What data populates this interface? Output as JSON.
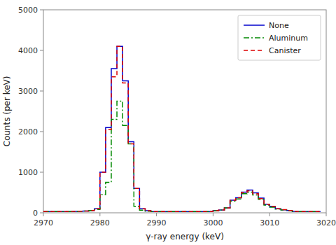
{
  "chart_data": {
    "type": "step",
    "title": "",
    "xlabel": "γ-ray energy (keV)",
    "ylabel": "Counts (per keV)",
    "xlim": [
      2970,
      3020
    ],
    "ylim": [
      0,
      5000
    ],
    "xticks": [
      2970,
      2980,
      2990,
      3000,
      3010,
      3020
    ],
    "yticks": [
      0,
      1000,
      2000,
      3000,
      4000,
      5000
    ],
    "grid": false,
    "legend": "upper right",
    "x": [
      2970,
      2971,
      2972,
      2973,
      2974,
      2975,
      2976,
      2977,
      2978,
      2979,
      2980,
      2981,
      2982,
      2983,
      2984,
      2985,
      2986,
      2987,
      2988,
      2989,
      2990,
      2991,
      2992,
      2993,
      2994,
      2995,
      2996,
      2997,
      2998,
      2999,
      3000,
      3001,
      3002,
      3003,
      3004,
      3005,
      3006,
      3007,
      3008,
      3009,
      3010,
      3011,
      3012,
      3013,
      3014,
      3015,
      3016,
      3017,
      3018,
      3019
    ],
    "series": [
      {
        "name": "None",
        "color": "#0000cc",
        "line_style": "solid",
        "values": [
          30,
          30,
          30,
          30,
          30,
          35,
          40,
          45,
          55,
          100,
          1000,
          2100,
          3550,
          4100,
          3250,
          1750,
          600,
          100,
          50,
          30,
          30,
          30,
          30,
          30,
          30,
          30,
          30,
          30,
          30,
          30,
          50,
          70,
          120,
          310,
          370,
          510,
          560,
          490,
          360,
          210,
          160,
          100,
          75,
          55,
          35,
          30,
          30,
          30,
          30,
          30
        ]
      },
      {
        "name": "Aluminum",
        "color": "#008800",
        "line_style": "dashdot",
        "values": [
          30,
          30,
          30,
          30,
          30,
          35,
          40,
          45,
          55,
          80,
          450,
          750,
          2300,
          2750,
          2150,
          1700,
          160,
          65,
          40,
          30,
          30,
          30,
          30,
          30,
          30,
          30,
          30,
          30,
          30,
          30,
          50,
          70,
          120,
          290,
          340,
          470,
          510,
          440,
          330,
          190,
          140,
          90,
          68,
          50,
          35,
          30,
          30,
          30,
          30,
          30
        ]
      },
      {
        "name": "Canister",
        "color": "#dd0000",
        "line_style": "dashed",
        "values": [
          30,
          30,
          30,
          30,
          30,
          35,
          40,
          45,
          55,
          100,
          1000,
          2050,
          3350,
          4100,
          3200,
          1700,
          600,
          100,
          50,
          30,
          30,
          30,
          30,
          30,
          30,
          30,
          30,
          30,
          30,
          30,
          50,
          70,
          120,
          310,
          370,
          500,
          540,
          470,
          350,
          210,
          155,
          100,
          78,
          58,
          35,
          30,
          30,
          30,
          30,
          30
        ]
      }
    ]
  }
}
